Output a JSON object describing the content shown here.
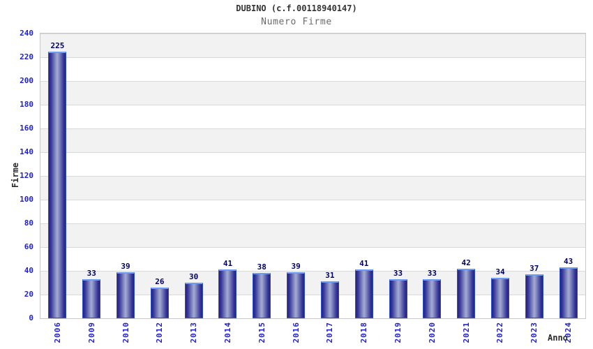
{
  "chart_data": {
    "type": "bar",
    "title": "DUBINO (c.f.00118940147)",
    "subtitle": "Numero Firme",
    "xlabel": "Anno",
    "ylabel": "Firme",
    "categories": [
      "2006",
      "2009",
      "2010",
      "2012",
      "2013",
      "2014",
      "2015",
      "2016",
      "2017",
      "2018",
      "2019",
      "2020",
      "2021",
      "2022",
      "2023",
      "2024"
    ],
    "values": [
      225,
      33,
      39,
      26,
      30,
      41,
      38,
      39,
      31,
      41,
      33,
      33,
      42,
      34,
      37,
      43
    ],
    "ylim": [
      0,
      240
    ],
    "yticks": [
      0,
      20,
      40,
      60,
      80,
      100,
      120,
      140,
      160,
      180,
      200,
      220,
      240
    ],
    "grid": "horizontal-bands-alternating",
    "legend": "none",
    "x_tick_rotation": "vertical",
    "bar_value_labels": true
  },
  "colors": {
    "tick_label": "#2222cc",
    "value_label": "#000066",
    "title_text": "#333333",
    "subtitle_text": "#6b6b6b",
    "axis_label": "#2b2b2b",
    "band_gray": "#f2f2f2",
    "band_white": "#ffffff",
    "grid_line": "#d9d9d9",
    "plot_border": "#c8c8c8",
    "bar_border": "#2c50d0",
    "bar_cap": "#6d9cf0",
    "bar_dark": "#23237b",
    "bar_mid": "#38389b",
    "bar_light": "#a6abd4"
  }
}
